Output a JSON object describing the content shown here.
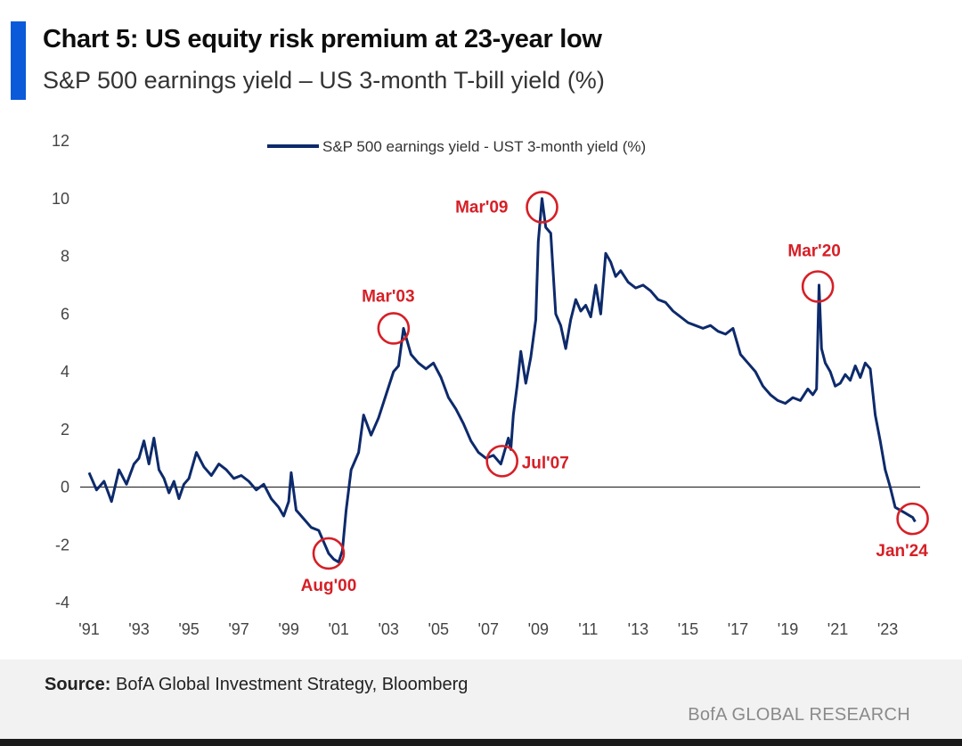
{
  "header": {
    "title": "Chart 5: US equity risk premium at 23-year low",
    "subtitle": "S&P 500 earnings yield – US 3-month T-bill yield (%)"
  },
  "footer": {
    "source_label": "Source:",
    "source_text": " BofA Global Investment Strategy, Bloomberg",
    "brand": "BofA GLOBAL RESEARCH"
  },
  "colors": {
    "accent": "#0a5ad9",
    "series": "#0d2a6b",
    "annotation": "#d61f26"
  },
  "chart_data": {
    "type": "line",
    "title": "",
    "xlabel": "",
    "ylabel": "",
    "legend": {
      "position": "top-center",
      "entries": [
        "S&P 500 earnings yield - UST 3-month yield (%)"
      ]
    },
    "grid": false,
    "zero_line": true,
    "xlim": [
      1991,
      2024.3
    ],
    "ylim": [
      -4,
      12
    ],
    "yticks": [
      12,
      10,
      8,
      6,
      4,
      2,
      0,
      -2,
      -4
    ],
    "xticks": [
      {
        "value": 1991,
        "label": "'91"
      },
      {
        "value": 1993,
        "label": "'93"
      },
      {
        "value": 1995,
        "label": "'95"
      },
      {
        "value": 1997,
        "label": "'97"
      },
      {
        "value": 1999,
        "label": "'99"
      },
      {
        "value": 2001,
        "label": "'01"
      },
      {
        "value": 2003,
        "label": "'03"
      },
      {
        "value": 2005,
        "label": "'05"
      },
      {
        "value": 2007,
        "label": "'07"
      },
      {
        "value": 2009,
        "label": "'09"
      },
      {
        "value": 2011,
        "label": "'11"
      },
      {
        "value": 2013,
        "label": "'13"
      },
      {
        "value": 2015,
        "label": "'15"
      },
      {
        "value": 2017,
        "label": "'17"
      },
      {
        "value": 2019,
        "label": "'19"
      },
      {
        "value": 2021,
        "label": "'21"
      },
      {
        "value": 2023,
        "label": "'23"
      }
    ],
    "series": [
      {
        "name": "S&P 500 earnings yield - UST 3-month yield (%)",
        "x": [
          1991.0,
          1991.3,
          1991.6,
          1991.9,
          1992.2,
          1992.5,
          1992.8,
          1993.0,
          1993.2,
          1993.4,
          1993.6,
          1993.8,
          1994.0,
          1994.2,
          1994.4,
          1994.6,
          1994.8,
          1995.0,
          1995.3,
          1995.6,
          1995.9,
          1996.2,
          1996.5,
          1996.8,
          1997.1,
          1997.4,
          1997.7,
          1998.0,
          1998.3,
          1998.6,
          1998.8,
          1999.0,
          1999.1,
          1999.3,
          1999.6,
          1999.9,
          2000.2,
          2000.5,
          2000.6,
          2000.8,
          2001.0,
          2001.15,
          2001.3,
          2001.5,
          2001.8,
          2002.0,
          2002.3,
          2002.6,
          2002.9,
          2003.2,
          2003.4,
          2003.6,
          2003.9,
          2004.2,
          2004.5,
          2004.8,
          2005.1,
          2005.4,
          2005.7,
          2006.0,
          2006.3,
          2006.6,
          2006.9,
          2007.2,
          2007.5,
          2007.6,
          2007.8,
          2007.9,
          2008.0,
          2008.15,
          2008.3,
          2008.5,
          2008.7,
          2008.9,
          2009.0,
          2009.15,
          2009.3,
          2009.5,
          2009.7,
          2009.9,
          2010.1,
          2010.3,
          2010.5,
          2010.7,
          2010.9,
          2011.1,
          2011.3,
          2011.5,
          2011.7,
          2011.9,
          2012.1,
          2012.3,
          2012.6,
          2012.9,
          2013.2,
          2013.5,
          2013.8,
          2014.1,
          2014.4,
          2014.7,
          2015.0,
          2015.3,
          2015.6,
          2015.9,
          2016.2,
          2016.5,
          2016.8,
          2017.1,
          2017.4,
          2017.7,
          2018.0,
          2018.3,
          2018.6,
          2018.9,
          2019.2,
          2019.5,
          2019.8,
          2020.0,
          2020.15,
          2020.25,
          2020.35,
          2020.5,
          2020.7,
          2020.9,
          2021.1,
          2021.3,
          2021.5,
          2021.7,
          2021.9,
          2022.1,
          2022.3,
          2022.5,
          2022.7,
          2022.9,
          2023.1,
          2023.3,
          2023.5,
          2023.7,
          2023.9,
          2024.0,
          2024.1
        ],
        "y": [
          0.5,
          -0.1,
          0.2,
          -0.5,
          0.6,
          0.1,
          0.8,
          1.0,
          1.6,
          0.8,
          1.7,
          0.6,
          0.3,
          -0.2,
          0.2,
          -0.4,
          0.1,
          0.3,
          1.2,
          0.7,
          0.4,
          0.8,
          0.6,
          0.3,
          0.4,
          0.2,
          -0.1,
          0.1,
          -0.4,
          -0.7,
          -1.0,
          -0.5,
          0.5,
          -0.8,
          -1.1,
          -1.4,
          -1.5,
          -2.1,
          -2.3,
          -2.5,
          -2.6,
          -2.2,
          -0.8,
          0.6,
          1.2,
          2.5,
          1.8,
          2.4,
          3.2,
          4.0,
          4.2,
          5.5,
          4.6,
          4.3,
          4.1,
          4.3,
          3.8,
          3.1,
          2.7,
          2.2,
          1.6,
          1.2,
          1.0,
          1.1,
          0.8,
          1.1,
          1.7,
          1.3,
          2.5,
          3.5,
          4.7,
          3.6,
          4.5,
          5.8,
          8.5,
          10.0,
          9.0,
          8.8,
          6.0,
          5.6,
          4.8,
          5.8,
          6.5,
          6.1,
          6.3,
          5.9,
          7.0,
          6.0,
          8.1,
          7.8,
          7.3,
          7.5,
          7.1,
          6.9,
          7.0,
          6.8,
          6.5,
          6.4,
          6.1,
          5.9,
          5.7,
          5.6,
          5.5,
          5.6,
          5.4,
          5.3,
          5.5,
          4.6,
          4.3,
          4.0,
          3.5,
          3.2,
          3.0,
          2.9,
          3.1,
          3.0,
          3.4,
          3.2,
          3.4,
          7.0,
          4.8,
          4.3,
          4.0,
          3.5,
          3.6,
          3.9,
          3.7,
          4.2,
          3.8,
          4.3,
          4.1,
          2.5,
          1.6,
          0.6,
          0.0,
          -0.7,
          -0.8,
          -0.9,
          -1.0,
          -1.05,
          -1.2
        ]
      }
    ],
    "annotations": [
      {
        "label": "Aug'00",
        "x": 2000.6,
        "y": -2.3
      },
      {
        "label": "Mar'03",
        "x": 2003.2,
        "y": 5.5
      },
      {
        "label": "Jul'07",
        "x": 2007.55,
        "y": 0.9
      },
      {
        "label": "Mar'09",
        "x": 2009.15,
        "y": 9.7
      },
      {
        "label": "Mar'20",
        "x": 2020.2,
        "y": 6.95
      },
      {
        "label": "Jan'24",
        "x": 2024.0,
        "y": -1.1
      }
    ]
  }
}
